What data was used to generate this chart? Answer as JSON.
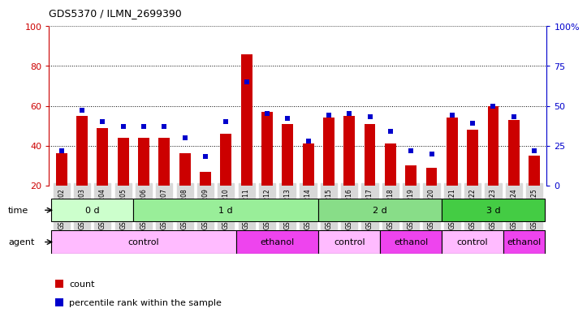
{
  "title": "GDS5370 / ILMN_2699390",
  "samples": [
    "GSM1131202",
    "GSM1131203",
    "GSM1131204",
    "GSM1131205",
    "GSM1131206",
    "GSM1131207",
    "GSM1131208",
    "GSM1131209",
    "GSM1131210",
    "GSM1131211",
    "GSM1131212",
    "GSM1131213",
    "GSM1131214",
    "GSM1131215",
    "GSM1131216",
    "GSM1131217",
    "GSM1131218",
    "GSM1131219",
    "GSM1131220",
    "GSM1131221",
    "GSM1131222",
    "GSM1131223",
    "GSM1131224",
    "GSM1131225"
  ],
  "count_values": [
    36,
    55,
    49,
    44,
    44,
    44,
    36,
    27,
    46,
    86,
    57,
    51,
    41,
    54,
    55,
    51,
    41,
    30,
    29,
    54,
    48,
    60,
    53,
    35
  ],
  "percentile_values": [
    22,
    47,
    40,
    37,
    37,
    37,
    30,
    18,
    40,
    65,
    45,
    42,
    28,
    44,
    45,
    43,
    34,
    22,
    20,
    44,
    39,
    50,
    43,
    22
  ],
  "ylim_left": [
    20,
    100
  ],
  "ylim_right": [
    0,
    100
  ],
  "yticks_left": [
    20,
    40,
    60,
    80,
    100
  ],
  "yticks_right": [
    0,
    25,
    50,
    75,
    100
  ],
  "left_axis_color": "#cc0000",
  "right_axis_color": "#0000cc",
  "bar_color": "#cc0000",
  "dot_color": "#0000cc",
  "bg_color": "#ffffff",
  "xticklabel_bg": "#d8d8d8",
  "time_groups": [
    {
      "label": "0 d",
      "start": 0,
      "end": 4,
      "color": "#ccffcc"
    },
    {
      "label": "1 d",
      "start": 4,
      "end": 13,
      "color": "#99ee99"
    },
    {
      "label": "2 d",
      "start": 13,
      "end": 19,
      "color": "#88dd88"
    },
    {
      "label": "3 d",
      "start": 19,
      "end": 24,
      "color": "#44cc44"
    }
  ],
  "agent_groups": [
    {
      "label": "control",
      "start": 0,
      "end": 9,
      "color": "#ffbbff"
    },
    {
      "label": "ethanol",
      "start": 9,
      "end": 13,
      "color": "#ee44ee"
    },
    {
      "label": "control",
      "start": 13,
      "end": 16,
      "color": "#ffbbff"
    },
    {
      "label": "ethanol",
      "start": 16,
      "end": 19,
      "color": "#ee44ee"
    },
    {
      "label": "control",
      "start": 19,
      "end": 22,
      "color": "#ffbbff"
    },
    {
      "label": "ethanol",
      "start": 22,
      "end": 24,
      "color": "#ee44ee"
    }
  ],
  "xlabel_time": "time",
  "xlabel_agent": "agent",
  "legend_count": "count",
  "legend_pct": "percentile rank within the sample"
}
